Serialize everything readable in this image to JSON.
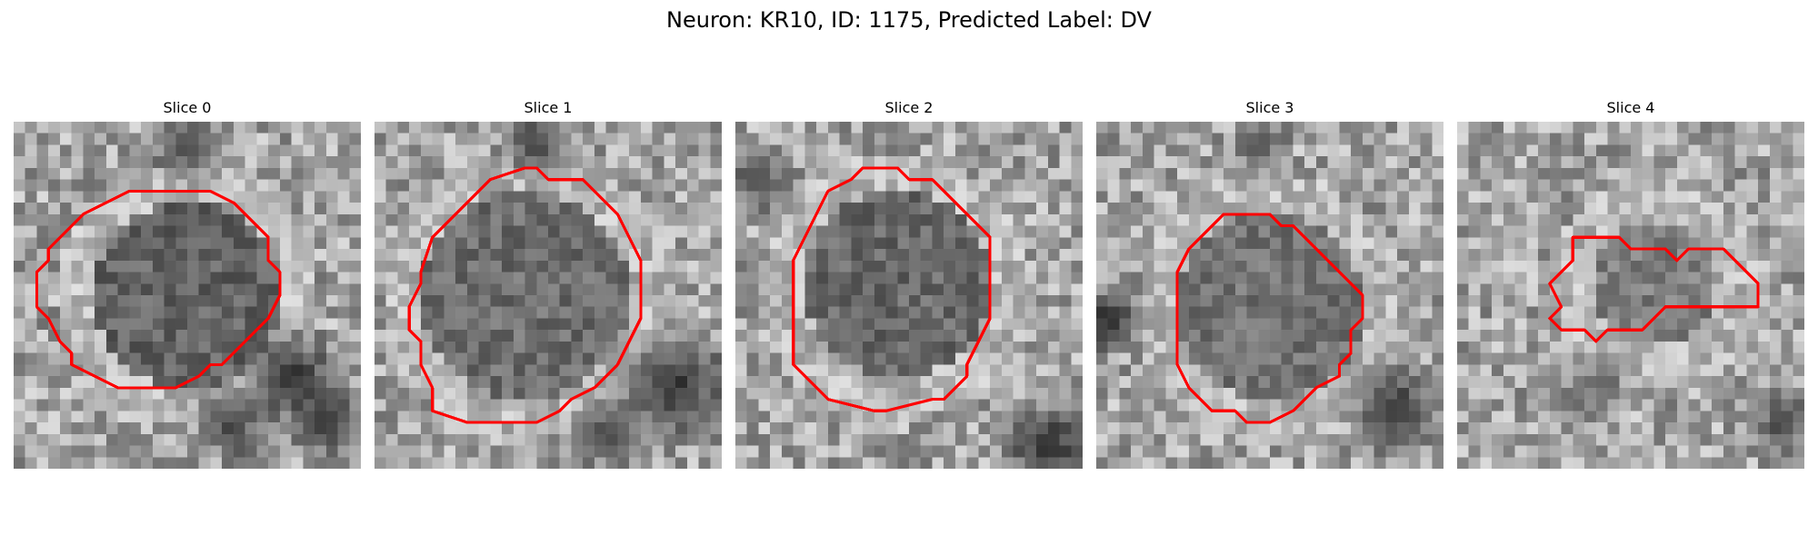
{
  "figure": {
    "title": "Neuron: KR10, ID: 1175, Predicted Label: DV",
    "contour_color": "#ff0000"
  },
  "panels": [
    {
      "title": "Slice 0"
    },
    {
      "title": "Slice 1"
    },
    {
      "title": "Slice 2"
    },
    {
      "title": "Slice 3"
    },
    {
      "title": "Slice 4"
    }
  ]
}
